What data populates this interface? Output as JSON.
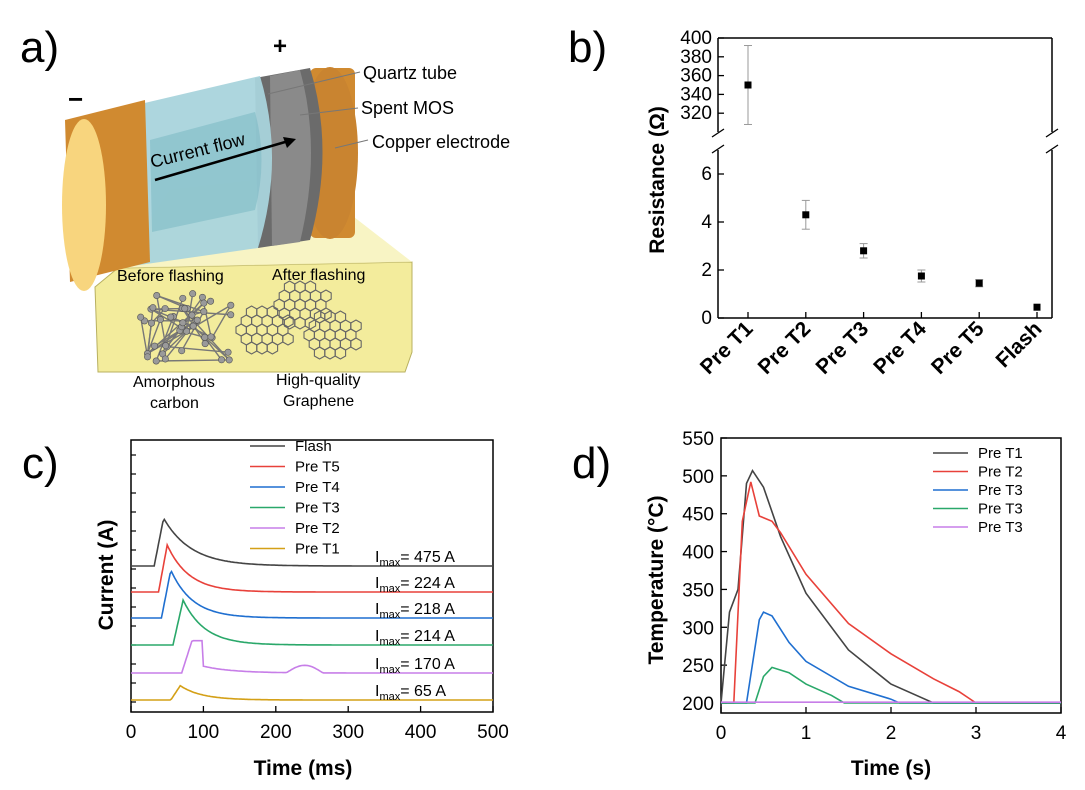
{
  "panel_labels": {
    "a": "a)",
    "b": "b)",
    "c": "c)",
    "d": "d)"
  },
  "diagram": {
    "plus": "+",
    "minus": "−",
    "quartz_tube": "Quartz tube",
    "spent_mos": "Spent MOS",
    "copper_electrode": "Copper electrode",
    "current_flow": "Current flow",
    "before_flashing": "Before flashing",
    "after_flashing": "After flashing",
    "amorphous_line1": "Amorphous",
    "amorphous_line2": "carbon",
    "graphene_line1": "High-quality",
    "graphene_line2": "Graphene",
    "colors": {
      "copper": "#d08a30",
      "tube": "#a9d4dc",
      "mos": "#555555",
      "inset": "#f3ec9c"
    }
  },
  "chart_data": [
    {
      "panel": "b",
      "type": "scatter",
      "ylabel": "Resistance (Ω)",
      "categories": [
        "Pre T1",
        "Pre T2",
        "Pre T3",
        "Pre T4",
        "Pre T5",
        "Flash"
      ],
      "values": [
        350,
        4.3,
        2.8,
        1.75,
        1.45,
        0.45
      ],
      "errors": [
        42,
        0.6,
        0.3,
        0.25,
        0.15,
        0
      ],
      "y_lower": {
        "ylim": [
          0,
          7
        ],
        "ticks": [
          0,
          2,
          4,
          6
        ]
      },
      "y_upper": {
        "ylim": [
          300,
          400
        ],
        "ticks": [
          320,
          340,
          360,
          380,
          400
        ]
      },
      "axis_break": true,
      "marker_color": "#000000"
    },
    {
      "panel": "c",
      "type": "line",
      "xlabel": "Time (ms)",
      "ylabel": "Current (A)",
      "xlim": [
        0,
        500
      ],
      "xticks": [
        0,
        100,
        200,
        300,
        400,
        500
      ],
      "legend_position": "top-right",
      "series": [
        {
          "name": "Flash",
          "color": "#444444",
          "imax_label": "I",
          "imax_sub": "max",
          "imax_value": "= 475 A",
          "peak": 475,
          "onset": 32,
          "peak_time": 45
        },
        {
          "name": "Pre T5",
          "color": "#e8413a",
          "imax_label": "I",
          "imax_sub": "max",
          "imax_value": "= 224 A",
          "peak": 224,
          "onset": 38,
          "peak_time": 50
        },
        {
          "name": "Pre T4",
          "color": "#1f6fd0",
          "imax_label": "I",
          "imax_sub": "max",
          "imax_value": "= 218 A",
          "peak": 218,
          "onset": 42,
          "peak_time": 55
        },
        {
          "name": "Pre T3",
          "color": "#2aa86a",
          "imax_label": "I",
          "imax_sub": "max",
          "imax_value": "= 214 A",
          "peak": 214,
          "onset": 58,
          "peak_time": 72
        },
        {
          "name": "Pre T2",
          "color": "#c77ee8",
          "imax_label": "I",
          "imax_sub": "max",
          "imax_value": "= 170 A",
          "peak": 170,
          "onset": 70,
          "peak_time": 85
        },
        {
          "name": "Pre T1",
          "color": "#d4a017",
          "imax_label": "I",
          "imax_sub": "max",
          "imax_value": "= 65 A",
          "peak": 65,
          "onset": 55,
          "peak_time": 68
        }
      ]
    },
    {
      "panel": "d",
      "type": "line",
      "xlabel": "Time (s)",
      "ylabel": "Temperature (°C)",
      "xlim": [
        0,
        4
      ],
      "ylim": [
        200,
        550
      ],
      "xticks": [
        0,
        1,
        2,
        3,
        4
      ],
      "yticks": [
        200,
        250,
        300,
        350,
        400,
        450,
        500,
        550
      ],
      "legend_position": "top-right",
      "series": [
        {
          "name": "Pre T1",
          "color": "#444444",
          "x": [
            0,
            0.1,
            0.2,
            0.3,
            0.37,
            0.5,
            0.7,
            1.0,
            1.5,
            2.0,
            2.5,
            4.0
          ],
          "y": [
            200,
            320,
            350,
            490,
            507,
            485,
            420,
            345,
            270,
            225,
            200,
            200
          ]
        },
        {
          "name": "Pre T2",
          "color": "#e8413a",
          "x": [
            0,
            0.15,
            0.25,
            0.35,
            0.45,
            0.6,
            0.7,
            1.0,
            1.5,
            2.0,
            2.5,
            2.8,
            3.0,
            4.0
          ],
          "y": [
            200,
            200,
            440,
            492,
            447,
            440,
            425,
            370,
            305,
            265,
            232,
            215,
            200,
            200
          ]
        },
        {
          "name": "Pre T3",
          "color": "#1f6fd0",
          "x": [
            0,
            0.3,
            0.45,
            0.5,
            0.6,
            0.8,
            1.0,
            1.5,
            2.0,
            2.1,
            4.0
          ],
          "y": [
            200,
            200,
            310,
            320,
            315,
            280,
            255,
            222,
            205,
            200,
            200
          ]
        },
        {
          "name": "Pre T3",
          "color": "#2aa86a",
          "x": [
            0,
            0.4,
            0.5,
            0.6,
            0.8,
            1.0,
            1.3,
            1.45,
            4.0
          ],
          "y": [
            200,
            200,
            235,
            247,
            240,
            225,
            210,
            200,
            200
          ]
        },
        {
          "name": "Pre T3",
          "color": "#c77ee8",
          "x": [
            0,
            4.0
          ],
          "y": [
            201,
            201
          ]
        }
      ]
    }
  ]
}
